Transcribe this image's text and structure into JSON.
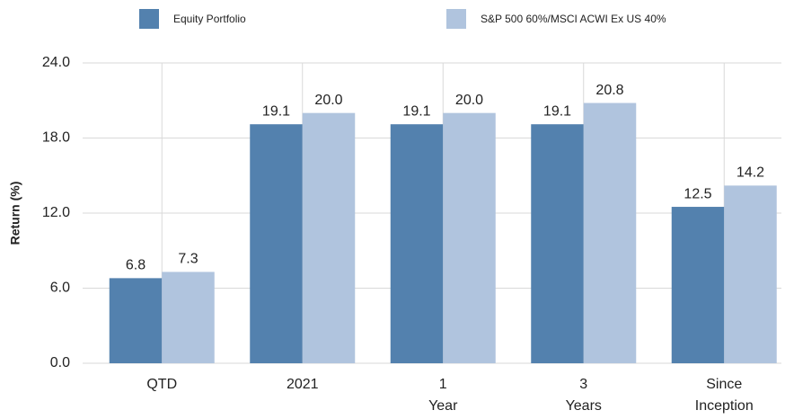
{
  "chart_data": {
    "type": "bar",
    "y_label": "Return (%)",
    "categories": [
      "QTD",
      "2021",
      "1 Year",
      "3 Years",
      "Since Inception"
    ],
    "series": [
      {
        "name": "Equity Portfolio",
        "color": "#5381ae",
        "values": [
          6.8,
          19.1,
          19.1,
          19.1,
          12.5
        ],
        "value_labels": [
          "6.8",
          "19.1",
          "19.1",
          "19.1",
          "12.5"
        ]
      },
      {
        "name": "S&P 500 60%/MSCI ACWI Ex US 40%",
        "color": "#b0c4de",
        "values": [
          7.3,
          20.0,
          20.0,
          20.8,
          14.2
        ],
        "value_labels": [
          "7.3",
          "20.0",
          "20.0",
          "20.8",
          "14.2"
        ]
      }
    ],
    "ylim": [
      0,
      24
    ],
    "yticks": [
      {
        "value": 0,
        "label": "0.0"
      },
      {
        "value": 6,
        "label": "6.0"
      },
      {
        "value": 12,
        "label": "12.0"
      },
      {
        "value": 18,
        "label": "18.0"
      },
      {
        "value": 24,
        "label": "24.0"
      }
    ],
    "grid": true
  }
}
